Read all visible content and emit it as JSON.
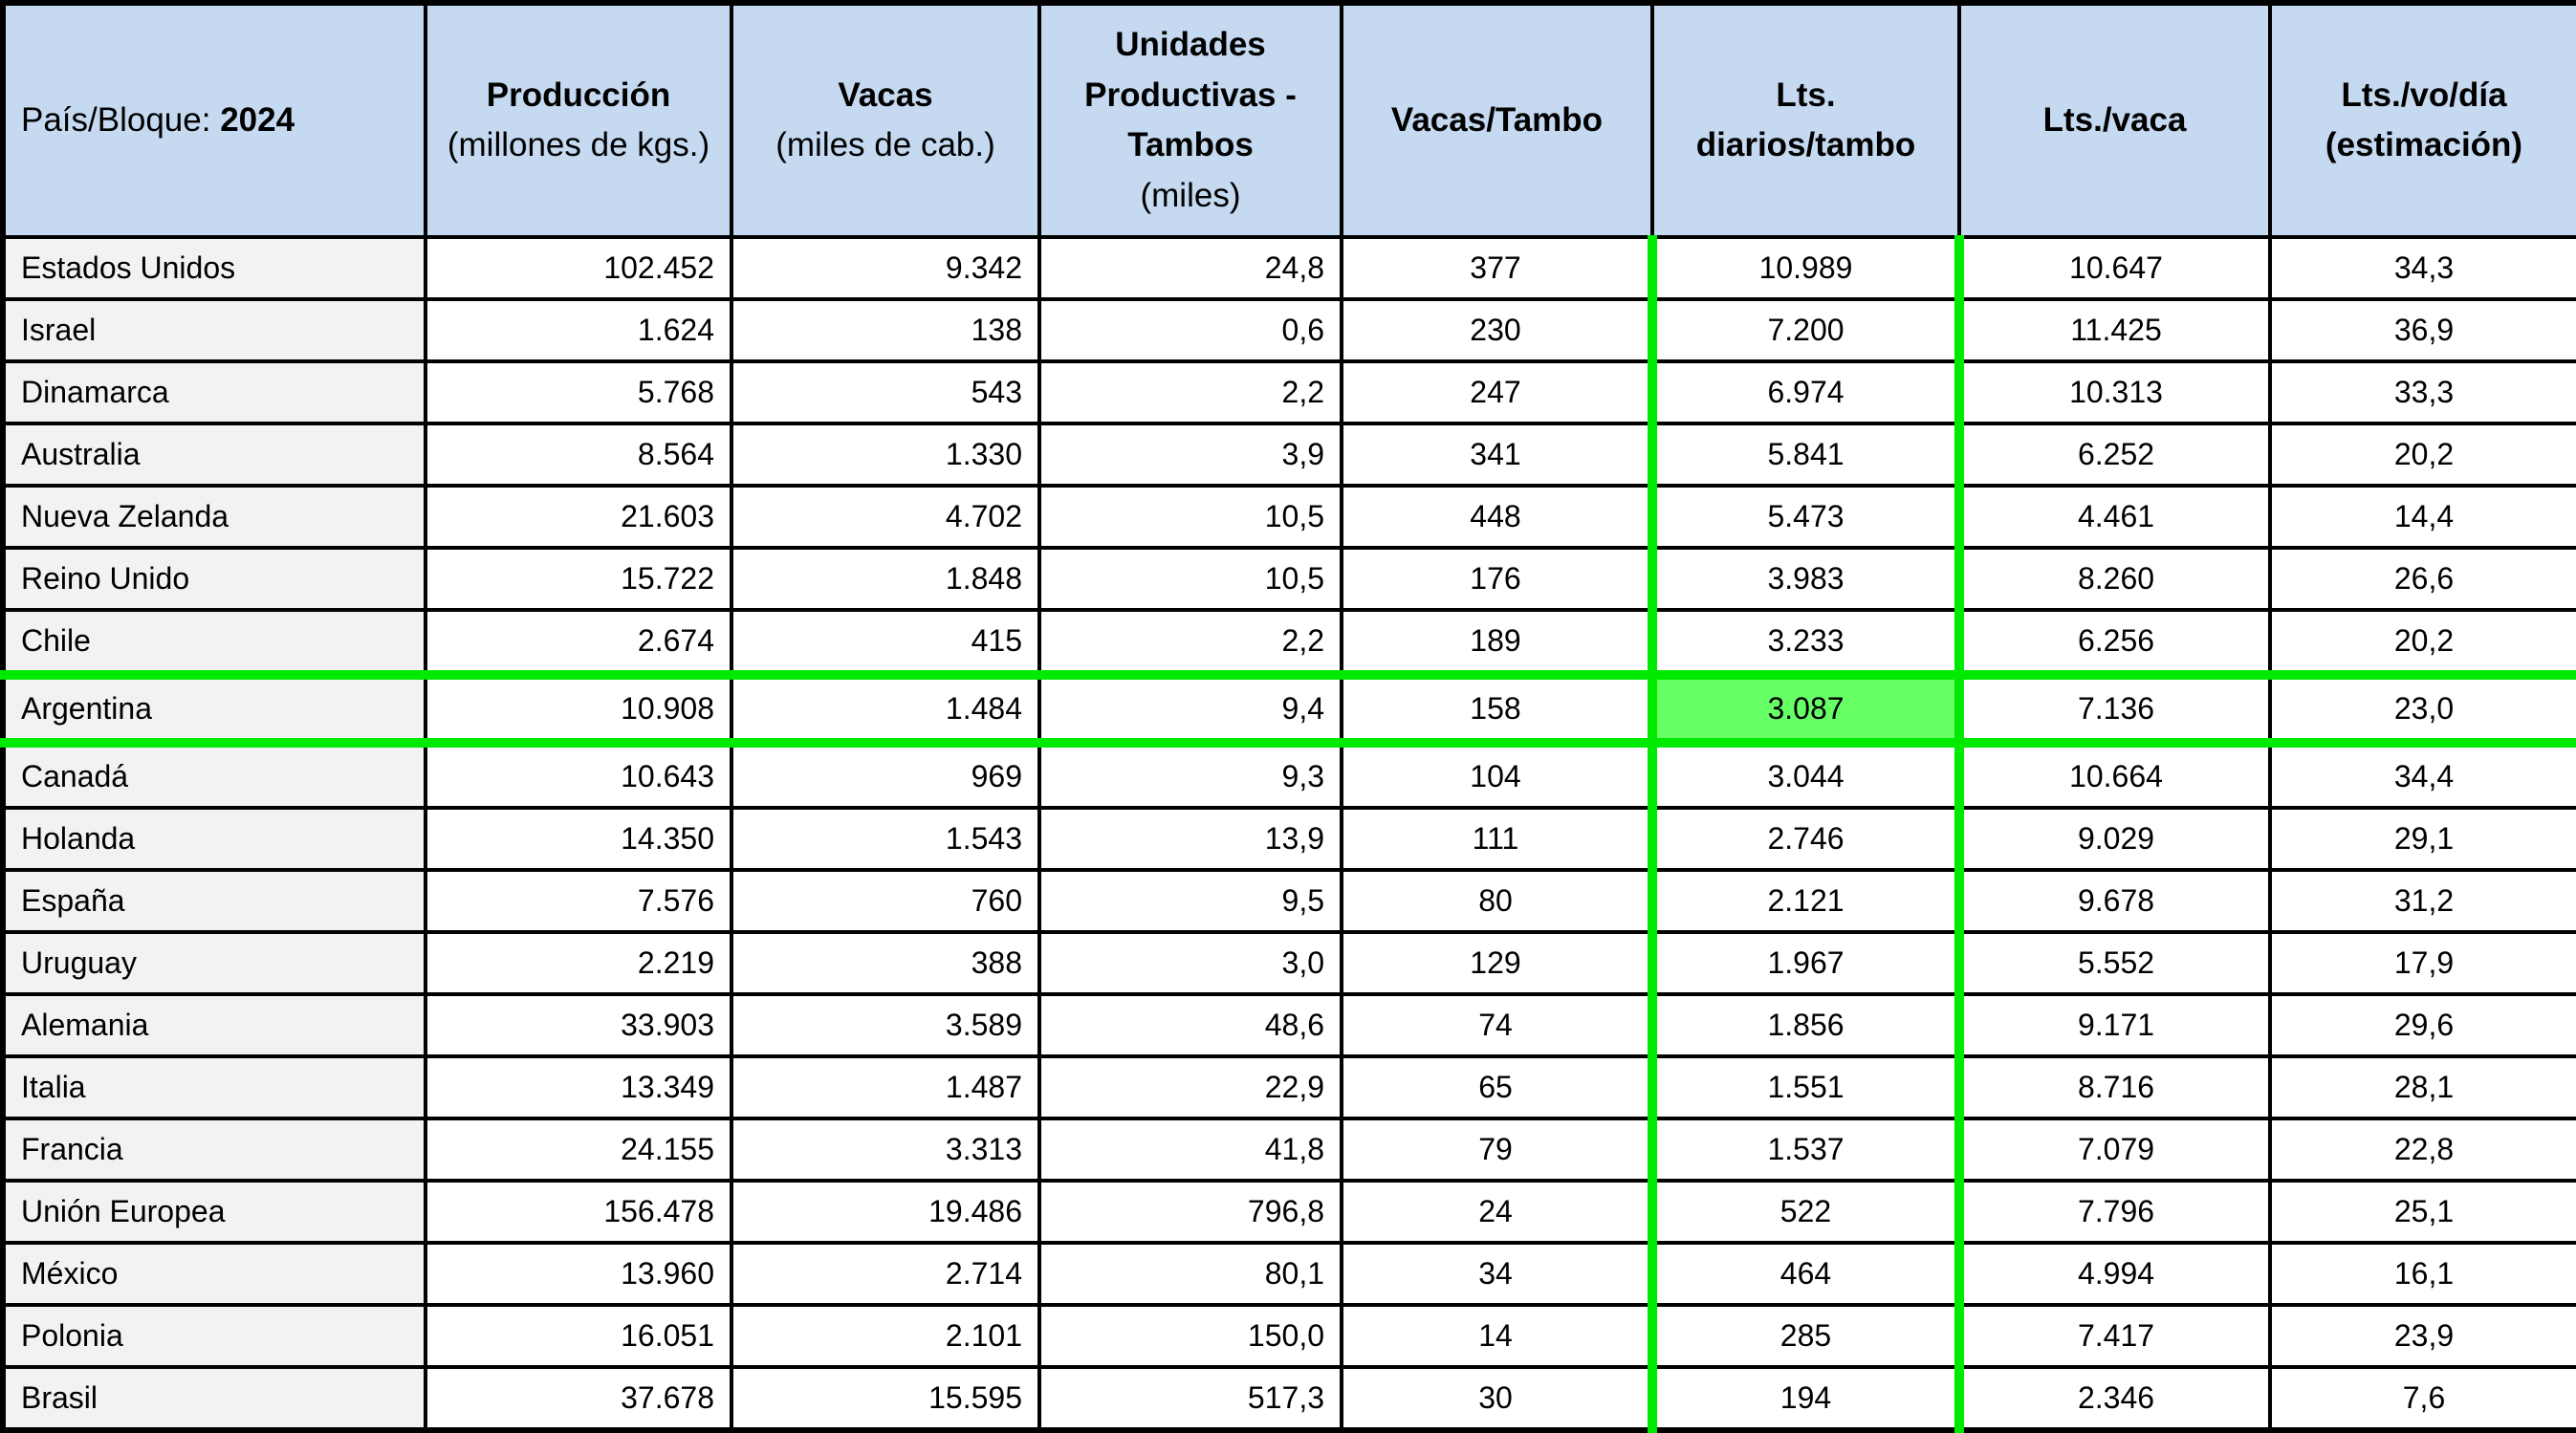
{
  "table": {
    "header": {
      "pais_prefix": "País/Bloque: ",
      "pais_year": "2024",
      "cols": [
        {
          "bold": "Producción",
          "normal": "(millones de kgs.)"
        },
        {
          "bold": "Vacas",
          "normal": "(miles de cab.)"
        },
        {
          "bold": "Unidades Productivas - Tambos",
          "normal": "(miles)"
        },
        {
          "bold": "Vacas/Tambo",
          "normal": ""
        },
        {
          "bold": "Lts. diarios/tambo",
          "normal": ""
        },
        {
          "bold": "Lts./vaca",
          "normal": ""
        },
        {
          "bold": "Lts./vo/día (estimación)",
          "normal": ""
        }
      ]
    }
  },
  "chart_data": {
    "type": "table",
    "columns": [
      "País/Bloque: 2024",
      "Producción (millones de kgs.)",
      "Vacas (miles de cab.)",
      "Unidades Productivas - Tambos (miles)",
      "Vacas/Tambo",
      "Lts. diarios/tambo",
      "Lts./vaca",
      "Lts./vo/día (estimación)"
    ],
    "rows": [
      [
        "Estados Unidos",
        "102.452",
        "9.342",
        "24,8",
        "377",
        "10.989",
        "10.647",
        "34,3"
      ],
      [
        "Israel",
        "1.624",
        "138",
        "0,6",
        "230",
        "7.200",
        "11.425",
        "36,9"
      ],
      [
        "Dinamarca",
        "5.768",
        "543",
        "2,2",
        "247",
        "6.974",
        "10.313",
        "33,3"
      ],
      [
        "Australia",
        "8.564",
        "1.330",
        "3,9",
        "341",
        "5.841",
        "6.252",
        "20,2"
      ],
      [
        "Nueva Zelanda",
        "21.603",
        "4.702",
        "10,5",
        "448",
        "5.473",
        "4.461",
        "14,4"
      ],
      [
        "Reino Unido",
        "15.722",
        "1.848",
        "10,5",
        "176",
        "3.983",
        "8.260",
        "26,6"
      ],
      [
        "Chile",
        "2.674",
        "415",
        "2,2",
        "189",
        "3.233",
        "6.256",
        "20,2"
      ],
      [
        "Argentina",
        "10.908",
        "1.484",
        "9,4",
        "158",
        "3.087",
        "7.136",
        "23,0"
      ],
      [
        "Canadá",
        "10.643",
        "969",
        "9,3",
        "104",
        "3.044",
        "10.664",
        "34,4"
      ],
      [
        "Holanda",
        "14.350",
        "1.543",
        "13,9",
        "111",
        "2.746",
        "9.029",
        "29,1"
      ],
      [
        "España",
        "7.576",
        "760",
        "9,5",
        "80",
        "2.121",
        "9.678",
        "31,2"
      ],
      [
        "Uruguay",
        "2.219",
        "388",
        "3,0",
        "129",
        "1.967",
        "5.552",
        "17,9"
      ],
      [
        "Alemania",
        "33.903",
        "3.589",
        "48,6",
        "74",
        "1.856",
        "9.171",
        "29,6"
      ],
      [
        "Italia",
        "13.349",
        "1.487",
        "22,9",
        "65",
        "1.551",
        "8.716",
        "28,1"
      ],
      [
        "Francia",
        "24.155",
        "3.313",
        "41,8",
        "79",
        "1.537",
        "7.079",
        "22,8"
      ],
      [
        "Unión Europea",
        "156.478",
        "19.486",
        "796,8",
        "24",
        "522",
        "7.796",
        "25,1"
      ],
      [
        "México",
        "13.960",
        "2.714",
        "80,1",
        "34",
        "464",
        "4.994",
        "16,1"
      ],
      [
        "Polonia",
        "16.051",
        "2.101",
        "150,0",
        "14",
        "285",
        "7.417",
        "23,9"
      ],
      [
        "Brasil",
        "37.678",
        "15.595",
        "517,3",
        "30",
        "194",
        "2.346",
        "7,6"
      ]
    ],
    "highlight": {
      "row": "Argentina",
      "cell_column": "Lts. diarios/tambo",
      "cell_value": "3.087"
    },
    "green_bracketed_column": "Lts. diarios/tambo"
  },
  "colors": {
    "header_bg": "#c5d9f1",
    "label_bg": "#f2f2f2",
    "grid": "#000000",
    "green_line": "#00ea00",
    "highlight_cell_bg": "#66ff66"
  }
}
